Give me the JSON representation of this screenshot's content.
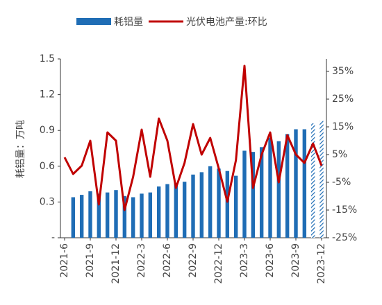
{
  "chart_data": {
    "type": "bar_line",
    "categories": [
      "2021-6",
      null,
      null,
      "2021-9",
      null,
      null,
      "2021-12",
      null,
      null,
      "2022-3",
      null,
      null,
      "2022-6",
      null,
      null,
      "2022-9",
      null,
      null,
      "2022-12",
      null,
      null,
      "2023-3",
      null,
      null,
      "2023-6",
      null,
      null,
      "2023-9",
      null,
      null,
      "2023-12"
    ],
    "y_label": "耗铝量：万吨",
    "series": [
      {
        "name": "耗铝量",
        "type": "bar",
        "color": "#1f6db5",
        "values": [
          null,
          0.34,
          0.36,
          0.39,
          0.37,
          0.38,
          0.4,
          0.35,
          0.34,
          0.37,
          0.38,
          0.43,
          0.45,
          0.46,
          0.47,
          0.53,
          0.55,
          0.6,
          0.58,
          0.56,
          0.52,
          0.73,
          0.72,
          0.76,
          0.84,
          0.81,
          0.87,
          0.91,
          0.91,
          0.96,
          0.98
        ],
        "hatched": [
          false,
          false,
          false,
          false,
          false,
          false,
          false,
          false,
          false,
          false,
          false,
          false,
          false,
          false,
          false,
          false,
          false,
          false,
          false,
          false,
          false,
          false,
          false,
          false,
          false,
          false,
          false,
          false,
          false,
          true,
          true
        ]
      },
      {
        "name": "光伏电池产量:环比",
        "type": "line",
        "axis": "y2",
        "color": "#c00000",
        "values": [
          4,
          -2,
          1,
          10,
          -13,
          13,
          10,
          -15,
          -3,
          14,
          -3,
          18,
          10,
          -7,
          2,
          16,
          5,
          11,
          0,
          -12,
          3,
          37,
          -7,
          5,
          13,
          -5,
          12,
          5,
          2,
          9,
          1
        ]
      }
    ],
    "ylim": [
      0,
      1.5
    ],
    "yticks": [
      {
        "value": 0,
        "label": "-"
      },
      0.3,
      0.6,
      0.9,
      1.2,
      1.5
    ],
    "y2lim": [
      -25,
      39.5
    ],
    "y2ticks": [
      {
        "value": -25,
        "label": "-25%"
      },
      {
        "value": -15,
        "label": "-15%"
      },
      {
        "value": -5,
        "label": "-5%"
      },
      {
        "value": 5,
        "label": "5%"
      },
      {
        "value": 15,
        "label": "15%"
      },
      {
        "value": 25,
        "label": "25%"
      },
      {
        "value": 35,
        "label": "35%"
      }
    ],
    "legend": "top"
  }
}
